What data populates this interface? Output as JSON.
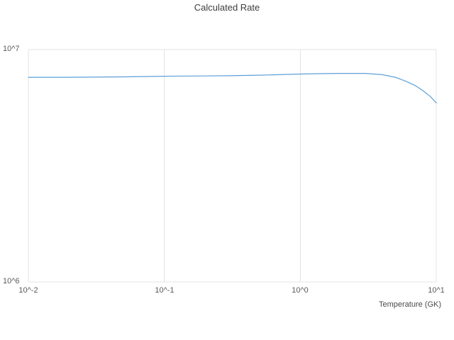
{
  "title": "Calculated Rate",
  "chart_data": {
    "type": "line",
    "title": "Calculated Rate",
    "xlabel": "Temperature (GK)",
    "ylabel": "",
    "x_scale": "log",
    "y_scale": "log",
    "xlim": [
      0.01,
      10
    ],
    "ylim": [
      1000000,
      10000000
    ],
    "grid": true,
    "legend": "none",
    "line_color": "#5f9fd6",
    "x_tick_values": [
      0.01,
      0.1,
      1,
      10
    ],
    "x_tick_labels": [
      "10^-2",
      "10^-1",
      "10^0",
      "10^1"
    ],
    "y_tick_values": [
      1000000,
      10000000
    ],
    "y_tick_labels": [
      "10^6",
      "10^7"
    ],
    "series": [
      {
        "name": "Calculated Rate",
        "x": [
          0.01,
          0.02,
          0.05,
          0.1,
          0.2,
          0.3,
          0.5,
          0.7,
          1.0,
          1.5,
          2.0,
          3.0,
          4.0,
          5.0,
          6.0,
          7.0,
          8.0,
          9.0,
          10.0
        ],
        "y": [
          7600000,
          7600000,
          7630000,
          7680000,
          7700000,
          7720000,
          7760000,
          7800000,
          7850000,
          7880000,
          7900000,
          7900000,
          7800000,
          7600000,
          7300000,
          7000000,
          6650000,
          6300000,
          5900000
        ]
      }
    ]
  }
}
